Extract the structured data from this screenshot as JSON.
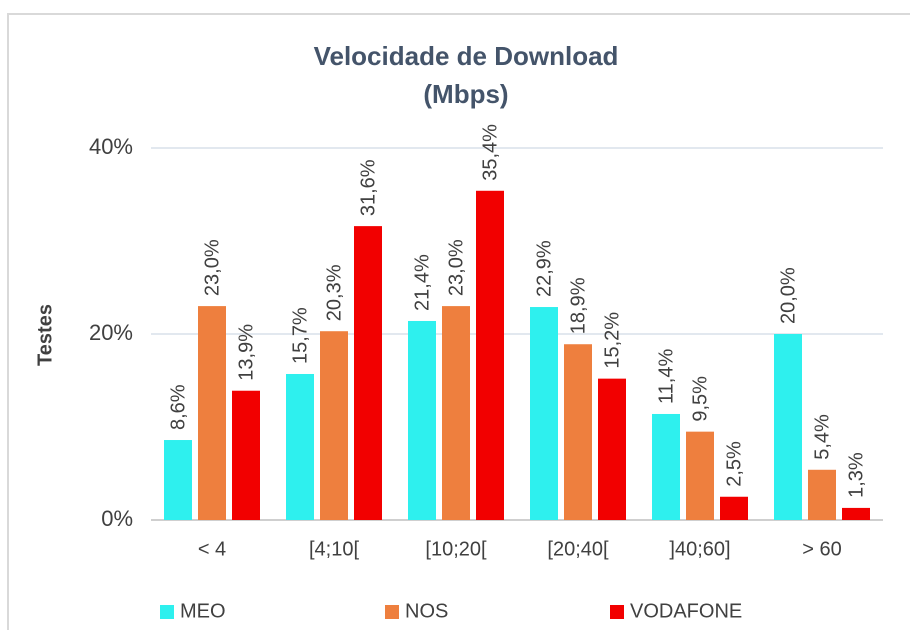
{
  "chart_data": {
    "type": "bar",
    "title": [
      "Velocidade de Download",
      "(Mbps)"
    ],
    "y_label": "Testes",
    "categories": [
      "< 4",
      "[4;10[",
      "[10;20[",
      "[20;40[",
      "]40;60]",
      "> 60"
    ],
    "series": [
      {
        "name": "MEO",
        "color": "#2ef0ee",
        "values": [
          8.6,
          15.7,
          21.4,
          22.9,
          11.4,
          20.0
        ],
        "value_labels": [
          "8,6%",
          "15,7%",
          "21,4%",
          "22,9%",
          "11,4%",
          "20,0%"
        ]
      },
      {
        "name": "NOS",
        "color": "#ee7f3e",
        "values": [
          23.0,
          20.3,
          23.0,
          18.9,
          9.5,
          5.4
        ],
        "value_labels": [
          "23,0%",
          "20,3%",
          "23,0%",
          "18,9%",
          "9,5%",
          "5,4%"
        ]
      },
      {
        "name": "VODAFONE",
        "color": "#f20000",
        "values": [
          13.9,
          31.6,
          35.4,
          15.2,
          2.5,
          1.3
        ],
        "value_labels": [
          "13,9%",
          "31,6%",
          "35,4%",
          "15,2%",
          "2,5%",
          "1,3%"
        ]
      }
    ],
    "ylim": [
      0,
      40
    ],
    "yticks": [
      {
        "value": 0,
        "label": "0%"
      },
      {
        "value": 20,
        "label": "20%"
      },
      {
        "value": 40,
        "label": "40%"
      }
    ],
    "grid": true,
    "legend": "bottom"
  }
}
